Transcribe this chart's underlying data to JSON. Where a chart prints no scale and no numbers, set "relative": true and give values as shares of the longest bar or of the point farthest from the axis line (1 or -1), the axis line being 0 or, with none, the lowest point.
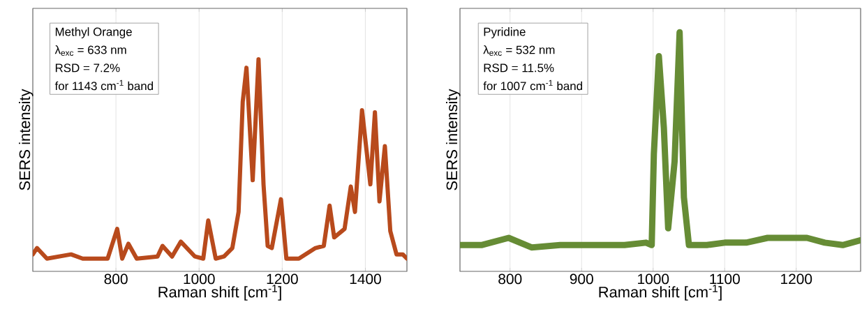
{
  "chart_data": [
    {
      "type": "line",
      "relative": true,
      "xlabel": "Raman shift [cm$^{-1}$]",
      "ylabel": "SERS intensity",
      "annotations": [
        "Methyl Orange",
        "λ$_{exc}$ = 633 nm",
        "RSD = 7.2%",
        "for 1143 cm$^{-1}$ band"
      ],
      "xlim": [
        600,
        1500
      ],
      "xticks": [
        800,
        1000,
        1200,
        1400
      ],
      "grid": "x",
      "series": [
        {
          "color": "#b84a1c",
          "x": [
            600,
            610,
            634,
            692,
            720,
            780,
            803,
            815,
            830,
            850,
            900,
            912,
            935,
            956,
            990,
            1010,
            1022,
            1040,
            1060,
            1080,
            1095,
            1105,
            1114,
            1129,
            1143,
            1155,
            1165,
            1175,
            1197,
            1210,
            1240,
            1280,
            1300,
            1314,
            1325,
            1350,
            1365,
            1375,
            1392,
            1412,
            1423,
            1434,
            1447,
            1460,
            1475,
            1490,
            1500
          ],
          "values": [
            0.08,
            0.11,
            0.06,
            0.08,
            0.06,
            0.06,
            0.2,
            0.06,
            0.13,
            0.06,
            0.07,
            0.12,
            0.07,
            0.14,
            0.07,
            0.06,
            0.24,
            0.06,
            0.07,
            0.11,
            0.28,
            0.8,
            0.96,
            0.43,
            1.0,
            0.41,
            0.12,
            0.11,
            0.34,
            0.06,
            0.06,
            0.11,
            0.12,
            0.31,
            0.16,
            0.2,
            0.4,
            0.28,
            0.76,
            0.41,
            0.75,
            0.33,
            0.59,
            0.19,
            0.08,
            0.08,
            0.06
          ]
        }
      ]
    },
    {
      "type": "line",
      "relative": true,
      "xlabel": "Raman shift [cm$^{-1}$]",
      "ylabel": "SERS intensity",
      "annotations": [
        "Pyridine",
        "λ$_{exc}$ = 532 nm",
        "RSD = 11.5%",
        "for 1007 cm$^{-1}$ band"
      ],
      "xlim": [
        730,
        1290
      ],
      "xticks": [
        800,
        900,
        1000,
        1100,
        1200
      ],
      "grid": "x",
      "series": [
        {
          "color": "#668c35",
          "x": [
            730,
            760,
            798,
            830,
            870,
            920,
            960,
            990,
            998,
            1001,
            1008,
            1015,
            1021,
            1030,
            1037,
            1043,
            1050,
            1075,
            1100,
            1130,
            1160,
            1190,
            1215,
            1240,
            1265,
            1290
          ],
          "values": [
            0.11,
            0.11,
            0.14,
            0.1,
            0.11,
            0.11,
            0.11,
            0.12,
            0.11,
            0.49,
            0.9,
            0.6,
            0.18,
            0.46,
            1.0,
            0.31,
            0.11,
            0.11,
            0.12,
            0.12,
            0.14,
            0.14,
            0.14,
            0.12,
            0.11,
            0.13
          ]
        }
      ]
    }
  ]
}
